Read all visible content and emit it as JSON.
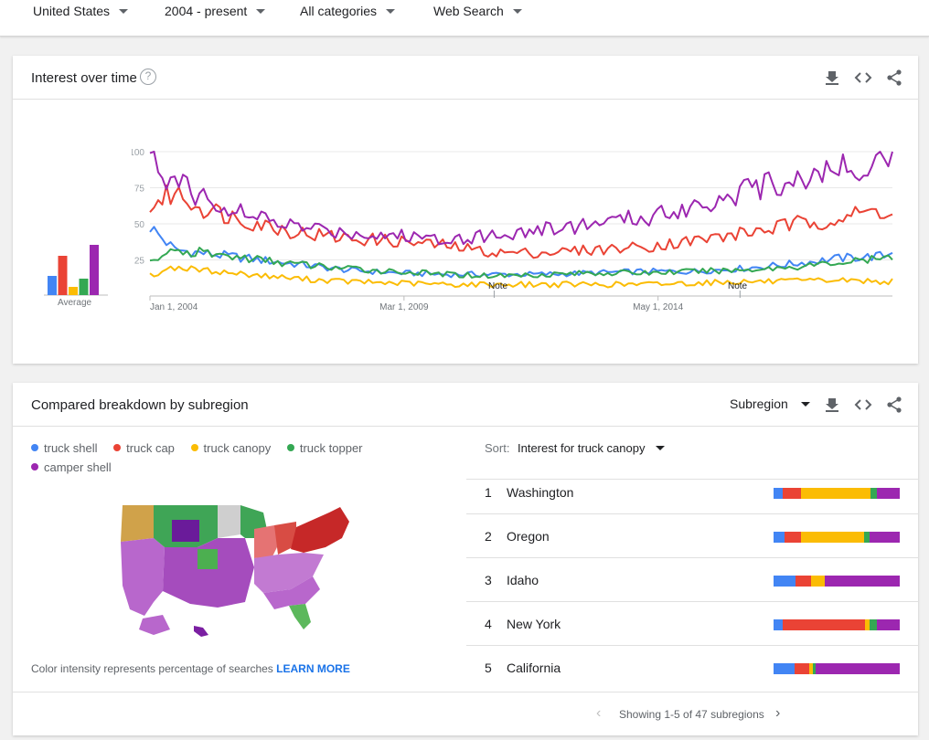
{
  "filters": {
    "region": "United States",
    "time": "2004 - present",
    "category": "All categories",
    "search_type": "Web Search"
  },
  "interest_over_time": {
    "title": "Interest over time",
    "help_glyph": "?",
    "average_label": "Average",
    "note_label": "Note",
    "icons": [
      "download-icon",
      "embed-icon",
      "share-icon"
    ]
  },
  "colors": {
    "truck_shell": "#4285f4",
    "truck_cap": "#ea4335",
    "truck_canopy": "#fbbc04",
    "truck_topper": "#34a853",
    "camper_shell": "#9c27b0"
  },
  "chart_data": {
    "type": "line",
    "x_ticks": [
      "Jan 1, 2004",
      "Mar 1, 2009",
      "May 1, 2014"
    ],
    "y_ticks": [
      "100",
      "75",
      "50",
      "25"
    ],
    "ylim": [
      0,
      100
    ],
    "xlim": [
      "2004-01",
      "2019-02"
    ],
    "grid": true,
    "notes_at": [
      "2011-01",
      "2016-01"
    ],
    "averages": [
      {
        "name": "truck shell",
        "value": 21
      },
      {
        "name": "truck cap",
        "value": 43
      },
      {
        "name": "truck canopy",
        "value": 9
      },
      {
        "name": "truck topper",
        "value": 18
      },
      {
        "name": "camper shell",
        "value": 55
      }
    ],
    "series": [
      {
        "name": "truck shell",
        "points": [
          [
            2004.0,
            48
          ],
          [
            2004.5,
            32
          ],
          [
            2005.0,
            30
          ],
          [
            2006.0,
            26
          ],
          [
            2007.0,
            22
          ],
          [
            2008.0,
            18
          ],
          [
            2009.0,
            16
          ],
          [
            2010.0,
            15
          ],
          [
            2011.0,
            15
          ],
          [
            2012.0,
            15
          ],
          [
            2013.0,
            16
          ],
          [
            2014.0,
            17
          ],
          [
            2015.0,
            17
          ],
          [
            2016.0,
            19
          ],
          [
            2017.0,
            22
          ],
          [
            2018.0,
            26
          ],
          [
            2019.0,
            28
          ],
          [
            2019.1,
            32
          ]
        ]
      },
      {
        "name": "truck cap",
        "points": [
          [
            2004.0,
            62
          ],
          [
            2004.5,
            72
          ],
          [
            2005.0,
            62
          ],
          [
            2006.0,
            52
          ],
          [
            2007.0,
            44
          ],
          [
            2008.0,
            40
          ],
          [
            2009.0,
            38
          ],
          [
            2010.0,
            35
          ],
          [
            2011.0,
            30
          ],
          [
            2012.0,
            30
          ],
          [
            2013.0,
            32
          ],
          [
            2014.0,
            34
          ],
          [
            2015.0,
            38
          ],
          [
            2016.0,
            43
          ],
          [
            2017.0,
            49
          ],
          [
            2018.0,
            54
          ],
          [
            2019.0,
            60
          ],
          [
            2019.1,
            55
          ]
        ]
      },
      {
        "name": "truck canopy",
        "points": [
          [
            2004.0,
            14
          ],
          [
            2004.5,
            20
          ],
          [
            2005.0,
            18
          ],
          [
            2006.0,
            15
          ],
          [
            2007.0,
            12
          ],
          [
            2008.0,
            10
          ],
          [
            2009.0,
            9
          ],
          [
            2010.0,
            8
          ],
          [
            2011.0,
            8
          ],
          [
            2012.0,
            8
          ],
          [
            2013.0,
            8
          ],
          [
            2014.0,
            8
          ],
          [
            2015.0,
            9
          ],
          [
            2016.0,
            10
          ],
          [
            2017.0,
            10
          ],
          [
            2018.0,
            11
          ],
          [
            2019.0,
            10
          ],
          [
            2019.1,
            10
          ]
        ]
      },
      {
        "name": "truck topper",
        "points": [
          [
            2004.0,
            25
          ],
          [
            2004.5,
            30
          ],
          [
            2005.0,
            30
          ],
          [
            2006.0,
            26
          ],
          [
            2007.0,
            22
          ],
          [
            2008.0,
            19
          ],
          [
            2009.0,
            17
          ],
          [
            2010.0,
            15
          ],
          [
            2011.0,
            14
          ],
          [
            2012.0,
            15
          ],
          [
            2013.0,
            16
          ],
          [
            2014.0,
            16
          ],
          [
            2015.0,
            17
          ],
          [
            2016.0,
            18
          ],
          [
            2017.0,
            20
          ],
          [
            2018.0,
            23
          ],
          [
            2019.0,
            26
          ],
          [
            2019.1,
            25
          ]
        ]
      },
      {
        "name": "camper shell",
        "points": [
          [
            2004.0,
            94
          ],
          [
            2004.5,
            78
          ],
          [
            2005.0,
            70
          ],
          [
            2006.0,
            55
          ],
          [
            2007.0,
            48
          ],
          [
            2008.0,
            44
          ],
          [
            2009.0,
            42
          ],
          [
            2010.0,
            40
          ],
          [
            2011.0,
            42
          ],
          [
            2012.0,
            46
          ],
          [
            2013.0,
            50
          ],
          [
            2014.0,
            54
          ],
          [
            2015.0,
            62
          ],
          [
            2016.0,
            72
          ],
          [
            2017.0,
            80
          ],
          [
            2018.0,
            88
          ],
          [
            2019.0,
            95
          ],
          [
            2019.1,
            98
          ]
        ]
      }
    ]
  },
  "breakdown": {
    "title": "Compared breakdown by subregion",
    "subregion_select": "Subregion",
    "legend": [
      "truck shell",
      "truck cap",
      "truck canopy",
      "truck topper",
      "camper shell"
    ],
    "sort_label": "Sort:",
    "sort_value": "Interest for truck canopy",
    "rows": [
      {
        "rank": "1",
        "name": "Washington",
        "shares": [
          0.07,
          0.14,
          0.54,
          0.05,
          0.18
        ]
      },
      {
        "rank": "2",
        "name": "Oregon",
        "shares": [
          0.08,
          0.13,
          0.48,
          0.04,
          0.23
        ]
      },
      {
        "rank": "3",
        "name": "Idaho",
        "shares": [
          0.17,
          0.12,
          0.11,
          0.0,
          0.58
        ]
      },
      {
        "rank": "4",
        "name": "New York",
        "shares": [
          0.07,
          0.65,
          0.03,
          0.06,
          0.18
        ]
      },
      {
        "rank": "5",
        "name": "California",
        "shares": [
          0.17,
          0.11,
          0.03,
          0.02,
          0.67
        ]
      }
    ],
    "footnote_text": "Color intensity represents percentage of searches",
    "learn_more": "LEARN MORE",
    "pager_text": "Showing 1-5 of 47 subregions",
    "pager_prev": "‹",
    "pager_next": "›"
  }
}
